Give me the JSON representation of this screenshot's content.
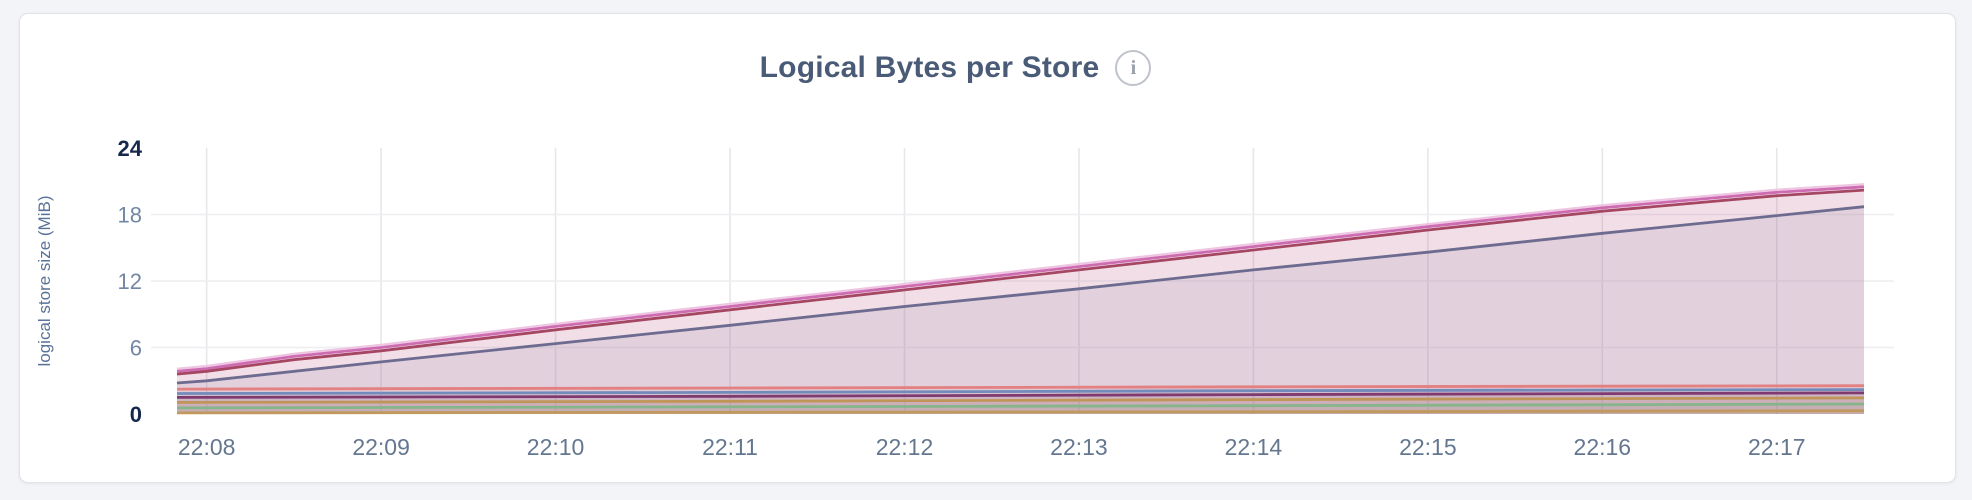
{
  "page": {
    "background": "#f3f4f8",
    "card_background": "#ffffff",
    "card_border": "#e2e3e7"
  },
  "header": {
    "title": "Logical Bytes per Store",
    "info_icon_glyph": "i"
  },
  "axis_style": {
    "tick_color": "#7287a3",
    "tick_emphasis_color": "#16294d",
    "x_tick_color": "#64778f",
    "grid_vertical_color": "#e7e7ea",
    "grid_horizontal_color": "#eeeef1",
    "ylabel_color": "#587398"
  },
  "chart_data": {
    "type": "area",
    "title": "Logical Bytes per Store",
    "xlabel": "",
    "ylabel": "logical store size (MiB)",
    "ylim": [
      0,
      24
    ],
    "grid": true,
    "legend": "none",
    "y_ticks": [
      {
        "value": 0,
        "label": "0",
        "emphasis": true,
        "gridline": false
      },
      {
        "value": 6,
        "label": "6",
        "emphasis": false,
        "gridline": true
      },
      {
        "value": 12,
        "label": "12",
        "emphasis": false,
        "gridline": true
      },
      {
        "value": 18,
        "label": "18",
        "emphasis": false,
        "gridline": true
      },
      {
        "value": 24,
        "label": "24",
        "emphasis": true,
        "gridline": false
      }
    ],
    "x_domain_minutes": [
      -0.17,
      9.5
    ],
    "x_ticks": [
      {
        "label": "22:08",
        "t": 0
      },
      {
        "label": "22:09",
        "t": 1
      },
      {
        "label": "22:10",
        "t": 2
      },
      {
        "label": "22:11",
        "t": 3
      },
      {
        "label": "22:12",
        "t": 4
      },
      {
        "label": "22:13",
        "t": 5
      },
      {
        "label": "22:14",
        "t": 6
      },
      {
        "label": "22:15",
        "t": 7
      },
      {
        "label": "22:16",
        "t": 8
      },
      {
        "label": "22:17",
        "t": 9
      }
    ],
    "unit": "MiB",
    "series": [
      {
        "id": "pink-rising",
        "color": "#ce6cb1",
        "halo": "#eec5e2",
        "fill_opacity": 0.1,
        "points": [
          [
            -0.17,
            3.85
          ],
          [
            0,
            4.1
          ],
          [
            0.5,
            5.2
          ],
          [
            1,
            6.0
          ],
          [
            2,
            7.9
          ],
          [
            3,
            9.7
          ],
          [
            4,
            11.5
          ],
          [
            5,
            13.3
          ],
          [
            6,
            15.1
          ],
          [
            7,
            16.9
          ],
          [
            8,
            18.6
          ],
          [
            9,
            20.0
          ],
          [
            9.5,
            20.5
          ]
        ]
      },
      {
        "id": "maroon-rising",
        "color": "#a54763",
        "fill_opacity": 0.1,
        "points": [
          [
            -0.17,
            3.6
          ],
          [
            0,
            3.85
          ],
          [
            0.5,
            4.9
          ],
          [
            1,
            5.7
          ],
          [
            2,
            7.6
          ],
          [
            3,
            9.4
          ],
          [
            4,
            11.2
          ],
          [
            5,
            13.0
          ],
          [
            6,
            14.8
          ],
          [
            7,
            16.6
          ],
          [
            8,
            18.3
          ],
          [
            9,
            19.7
          ],
          [
            9.5,
            20.2
          ]
        ]
      },
      {
        "id": "slate-rising",
        "color": "#6e6b90",
        "fill_opacity": 0.11,
        "points": [
          [
            -0.17,
            2.8
          ],
          [
            0,
            3.0
          ],
          [
            1,
            4.7
          ],
          [
            2,
            6.35
          ],
          [
            3,
            8.0
          ],
          [
            4,
            9.7
          ],
          [
            5,
            11.3
          ],
          [
            6,
            13.0
          ],
          [
            7,
            14.6
          ],
          [
            8,
            16.3
          ],
          [
            9,
            17.9
          ],
          [
            9.5,
            18.7
          ]
        ]
      },
      {
        "id": "salmon-flat",
        "color": "#e28082",
        "fill_opacity": 0.1,
        "points": [
          [
            -0.17,
            2.25
          ],
          [
            3,
            2.35
          ],
          [
            6,
            2.45
          ],
          [
            9.5,
            2.55
          ]
        ]
      },
      {
        "id": "blue-flat",
        "color": "#728bba",
        "fill_opacity": 0.1,
        "points": [
          [
            -0.17,
            1.85
          ],
          [
            3,
            1.95
          ],
          [
            6,
            2.1
          ],
          [
            9.5,
            2.2
          ]
        ]
      },
      {
        "id": "plum-flat",
        "color": "#7f3b6f",
        "fill_opacity": 0.1,
        "points": [
          [
            -0.17,
            1.5
          ],
          [
            3,
            1.6
          ],
          [
            6,
            1.75
          ],
          [
            9.5,
            1.9
          ]
        ]
      },
      {
        "id": "gold-flat",
        "color": "#c09658",
        "fill_opacity": 0.1,
        "points": [
          [
            -0.17,
            1.05
          ],
          [
            3,
            1.15
          ],
          [
            6,
            1.3
          ],
          [
            9.5,
            1.45
          ]
        ]
      },
      {
        "id": "green-flat",
        "color": "#86b58c",
        "fill_opacity": 0.1,
        "points": [
          [
            -0.17,
            0.55
          ],
          [
            3,
            0.65
          ],
          [
            6,
            0.75
          ],
          [
            9.5,
            0.9
          ]
        ]
      },
      {
        "id": "tan-flat",
        "color": "#c1985e",
        "fill_opacity": 0.1,
        "points": [
          [
            -0.17,
            0.1
          ],
          [
            3,
            0.15
          ],
          [
            6,
            0.2
          ],
          [
            9.5,
            0.3
          ]
        ]
      }
    ]
  }
}
